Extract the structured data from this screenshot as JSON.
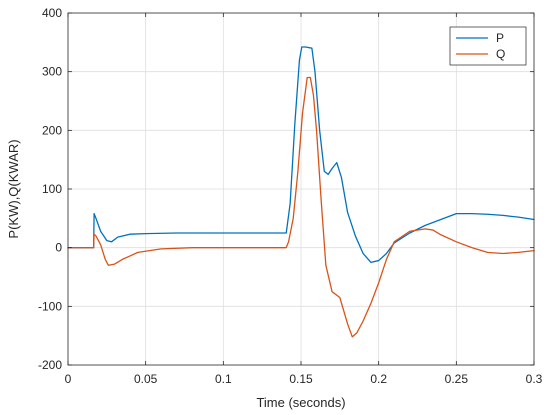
{
  "chart_data": {
    "type": "line",
    "title": "",
    "xlabel": "Time (seconds)",
    "ylabel": "P(KW),Q(KWAR)",
    "xlim": [
      0,
      0.3
    ],
    "ylim": [
      -200,
      400
    ],
    "grid": true,
    "legend_position": "top-right",
    "xticks": [
      0,
      0.05,
      0.1,
      0.15,
      0.2,
      0.25,
      0.3
    ],
    "xtick_labels": [
      "0",
      "0.05",
      "0.1",
      "0.15",
      "0.2",
      "0.25",
      "0.3"
    ],
    "yticks": [
      -200,
      -100,
      0,
      100,
      200,
      300,
      400
    ],
    "ytick_labels": [
      "-200",
      "-100",
      "0",
      "100",
      "200",
      "300",
      "400"
    ],
    "series": [
      {
        "name": "P",
        "color": "#0072BD",
        "x": [
          0,
          0.0165,
          0.0168,
          0.018,
          0.021,
          0.025,
          0.028,
          0.032,
          0.04,
          0.05,
          0.07,
          0.1,
          0.12,
          0.14,
          0.1405,
          0.143,
          0.146,
          0.149,
          0.1505,
          0.153,
          0.157,
          0.159,
          0.162,
          0.165,
          0.1675,
          0.17,
          0.173,
          0.176,
          0.18,
          0.185,
          0.19,
          0.195,
          0.2,
          0.205,
          0.21,
          0.22,
          0.23,
          0.24,
          0.25,
          0.26,
          0.27,
          0.28,
          0.29,
          0.3
        ],
        "y": [
          0,
          0,
          58,
          50,
          28,
          12,
          10,
          18,
          23,
          24,
          25,
          25,
          25,
          25,
          25,
          75,
          210,
          320,
          342,
          342,
          340,
          300,
          200,
          130,
          125,
          135,
          145,
          120,
          60,
          20,
          -10,
          -25,
          -22,
          -10,
          8,
          25,
          38,
          48,
          58,
          58,
          57,
          55,
          52,
          48
        ]
      },
      {
        "name": "Q",
        "color": "#D95319",
        "x": [
          0,
          0.0165,
          0.0168,
          0.018,
          0.021,
          0.024,
          0.026,
          0.03,
          0.035,
          0.045,
          0.06,
          0.08,
          0.1,
          0.12,
          0.14,
          0.1405,
          0.142,
          0.145,
          0.148,
          0.151,
          0.154,
          0.156,
          0.158,
          0.16,
          0.163,
          0.166,
          0.17,
          0.175,
          0.18,
          0.183,
          0.186,
          0.19,
          0.195,
          0.2,
          0.205,
          0.21,
          0.22,
          0.23,
          0.235,
          0.24,
          0.25,
          0.26,
          0.27,
          0.28,
          0.29,
          0.3
        ],
        "y": [
          0,
          0,
          23,
          20,
          5,
          -20,
          -30,
          -28,
          -20,
          -8,
          -2,
          0,
          0,
          0,
          0,
          0,
          10,
          50,
          130,
          230,
          290,
          290,
          260,
          200,
          80,
          -30,
          -75,
          -85,
          -130,
          -152,
          -145,
          -125,
          -95,
          -60,
          -20,
          10,
          28,
          32,
          30,
          22,
          10,
          0,
          -8,
          -10,
          -8,
          -5
        ]
      }
    ]
  }
}
